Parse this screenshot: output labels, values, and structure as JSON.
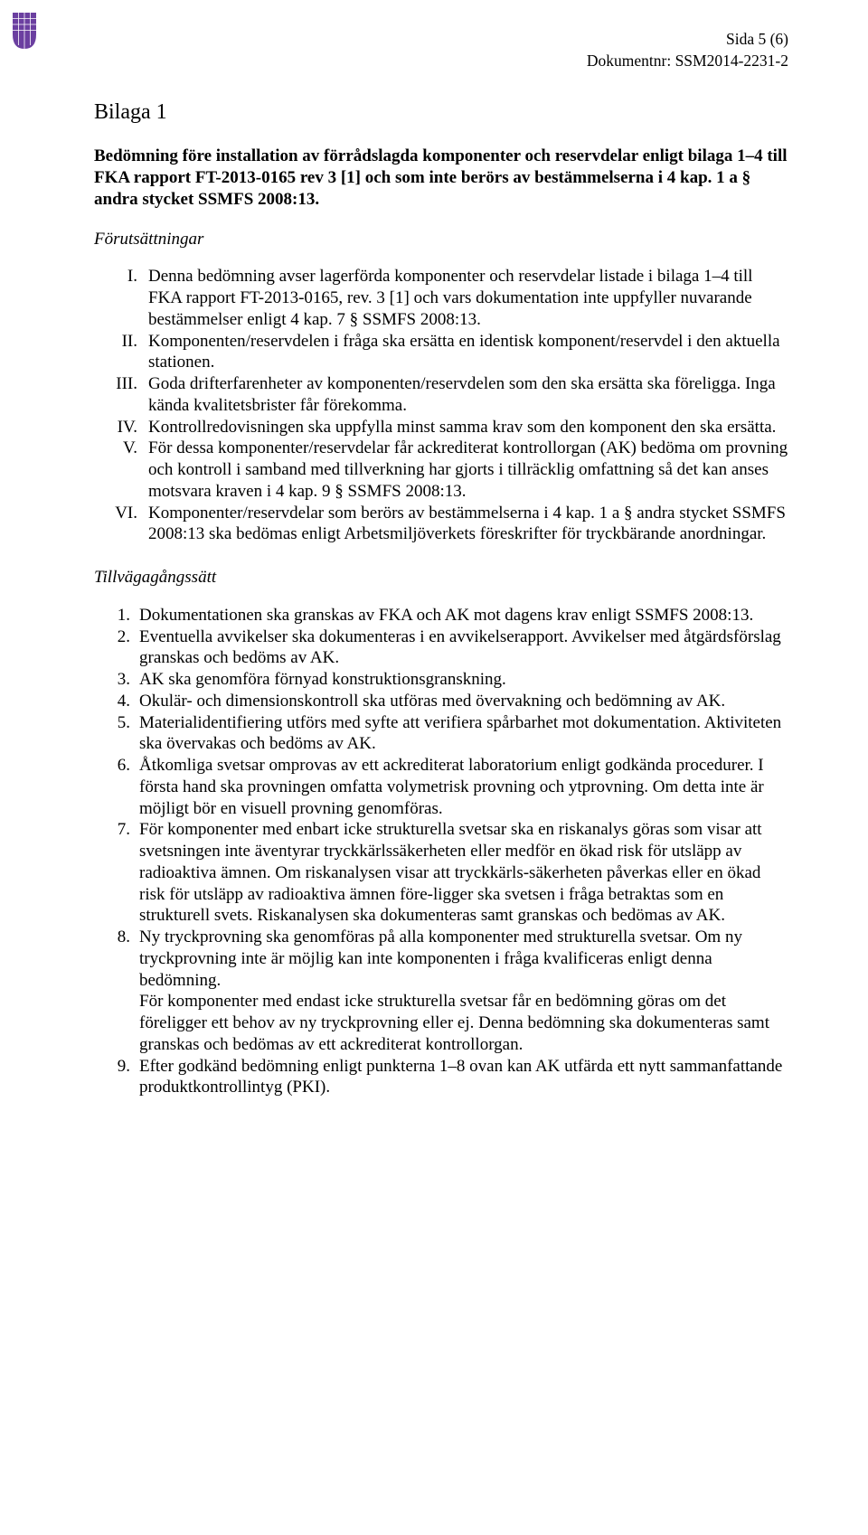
{
  "logo": {
    "fill": "#6b3fa0",
    "stroke": "#6b3fa0"
  },
  "header": {
    "page_info": "Sida 5 (6)",
    "doc_no": "Dokumentnr: SSM2014-2231-2"
  },
  "title": "Bilaga 1",
  "lead": "Bedömning före installation av förrådslagda komponenter och reservdelar enligt bilaga 1–4 till FKA rapport FT-2013-0165 rev 3 [1] och som inte berörs av bestämmelserna i 4 kap. 1 a § andra stycket SSMFS 2008:13.",
  "preconditions_heading": "Förutsättningar",
  "roman_items": [
    {
      "num": "I.",
      "text": "Denna bedömning avser lagerförda komponenter och reservdelar listade i bilaga 1–4 till FKA rapport FT-2013-0165, rev. 3 [1] och vars dokumentation inte uppfyller nuvarande bestämmelser enligt 4 kap. 7 § SSMFS 2008:13."
    },
    {
      "num": "II.",
      "text": "Komponenten/reservdelen i fråga ska ersätta en identisk komponent/reservdel i den aktuella stationen."
    },
    {
      "num": "III.",
      "text": "Goda drifterfarenheter av komponenten/reservdelen som den ska ersätta ska föreligga. Inga kända kvalitetsbrister får förekomma."
    },
    {
      "num": "IV.",
      "text": "Kontrollredovisningen ska uppfylla minst samma krav som den komponent den ska ersätta."
    },
    {
      "num": "V.",
      "text": "För dessa komponenter/reservdelar får ackrediterat kontrollorgan (AK) bedöma om provning och kontroll i samband med tillverkning har gjorts i tillräcklig omfattning så det kan anses motsvara kraven i 4 kap. 9 § SSMFS 2008:13."
    },
    {
      "num": "VI.",
      "text": "Komponenter/reservdelar som berörs av bestämmelserna i 4 kap. 1 a § andra stycket SSMFS 2008:13 ska bedömas enligt Arbetsmiljöverkets föreskrifter för tryckbärande anordningar."
    }
  ],
  "procedure_heading": "Tillvägagångssätt",
  "arabic_items": [
    {
      "num": "1.",
      "text": "Dokumentationen ska granskas av FKA och AK mot dagens krav enligt SSMFS 2008:13."
    },
    {
      "num": "2.",
      "text": "Eventuella avvikelser ska dokumenteras i en avvikelserapport. Avvikelser med åtgärdsförslag granskas och bedöms av AK."
    },
    {
      "num": "3.",
      "text": "AK ska genomföra förnyad konstruktionsgranskning."
    },
    {
      "num": "4.",
      "text": "Okulär- och dimensionskontroll ska utföras med övervakning och bedömning av AK."
    },
    {
      "num": "5.",
      "text": "Materialidentifiering utförs med syfte att verifiera spårbarhet mot dokumentation. Aktiviteten ska övervakas och bedöms av AK."
    },
    {
      "num": "6.",
      "text": "Åtkomliga svetsar omprovas av ett ackrediterat laboratorium enligt godkända procedurer. I första hand ska provningen omfatta volymetrisk provning och ytprovning. Om detta inte är möjligt bör en visuell provning genomföras."
    },
    {
      "num": "7.",
      "text": "För komponenter med enbart icke strukturella svetsar ska en riskanalys göras som visar att svetsningen inte äventyrar tryckkärlssäkerheten eller medför en ökad risk för utsläpp av radioaktiva ämnen. Om riskanalysen visar att tryckkärls-säkerheten påverkas eller en ökad risk för utsläpp av radioaktiva ämnen före-ligger ska svetsen i fråga betraktas som en strukturell svets. Riskanalysen ska dokumenteras samt granskas och bedömas av AK."
    },
    {
      "num": "8.",
      "text": "Ny tryckprovning ska genomföras på alla komponenter med strukturella svetsar. Om ny tryckprovning inte är möjlig kan inte komponenten i fråga kvalificeras enligt denna bedömning.",
      "cont": "För komponenter med endast icke strukturella svetsar får en bedömning göras om det föreligger ett behov av ny tryckprovning eller ej. Denna bedömning ska dokumenteras samt granskas och bedömas av ett ackrediterat kontrollorgan."
    },
    {
      "num": "9.",
      "text": "Efter godkänd bedömning enligt punkterna 1–8 ovan kan AK utfärda ett nytt sammanfattande produktkontrollintyg (PKI)."
    }
  ]
}
